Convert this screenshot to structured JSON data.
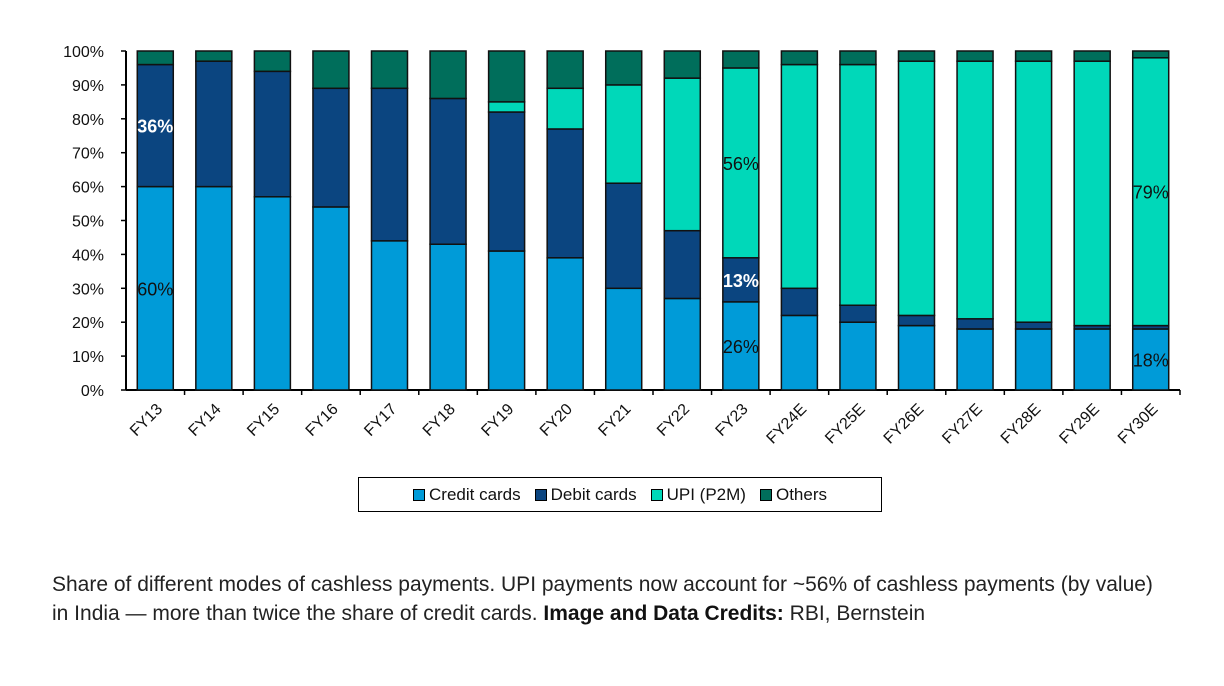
{
  "chart_data": {
    "type": "bar",
    "stacked": true,
    "categories": [
      "FY13",
      "FY14",
      "FY15",
      "FY16",
      "FY17",
      "FY18",
      "FY19",
      "FY20",
      "FY21",
      "FY22",
      "FY23",
      "FY24E",
      "FY25E",
      "FY26E",
      "FY27E",
      "FY28E",
      "FY29E",
      "FY30E"
    ],
    "series": [
      {
        "name": "Credit cards",
        "color": "#009bd8",
        "values": [
          60,
          60,
          57,
          54,
          44,
          43,
          41,
          39,
          30,
          27,
          26,
          22,
          20,
          19,
          18,
          18,
          18,
          18
        ]
      },
      {
        "name": "Debit cards",
        "color": "#0b4580",
        "values": [
          36,
          37,
          37,
          35,
          45,
          43,
          41,
          38,
          31,
          20,
          13,
          8,
          5,
          3,
          3,
          2,
          1,
          1
        ]
      },
      {
        "name": "UPI (P2M)",
        "color": "#00d8b9",
        "values": [
          0,
          0,
          0,
          0,
          0,
          0,
          3,
          12,
          29,
          45,
          56,
          66,
          71,
          75,
          76,
          77,
          78,
          79
        ]
      },
      {
        "name": "Others",
        "color": "#006e5b",
        "values": [
          4,
          3,
          6,
          11,
          11,
          14,
          15,
          11,
          10,
          8,
          5,
          4,
          4,
          3,
          3,
          3,
          3,
          2
        ]
      }
    ],
    "ylim": [
      0,
      100
    ],
    "yticks": [
      "0%",
      "10%",
      "20%",
      "30%",
      "40%",
      "50%",
      "60%",
      "70%",
      "80%",
      "90%",
      "100%"
    ],
    "grid": false,
    "legend": "bottom",
    "data_labels": [
      {
        "category": "FY13",
        "series": "Debit cards",
        "text": "36%"
      },
      {
        "category": "FY13",
        "series": "Credit cards",
        "text": "60%"
      },
      {
        "category": "FY23",
        "series": "UPI (P2M)",
        "text": "56%"
      },
      {
        "category": "FY23",
        "series": "Debit cards",
        "text": "13%"
      },
      {
        "category": "FY23",
        "series": "Credit cards",
        "text": "26%"
      },
      {
        "category": "FY30E",
        "series": "UPI (P2M)",
        "text": "79%"
      },
      {
        "category": "FY30E",
        "series": "Credit cards",
        "text": "18%"
      }
    ]
  },
  "caption": {
    "text": "Share of different modes of cashless payments. UPI payments now account for ~56% of cashless payments (by value) in India — more than twice the share of credit cards. ",
    "credits_label": "Image and Data Credits:",
    "credits_value": " RBI, Bernstein"
  }
}
